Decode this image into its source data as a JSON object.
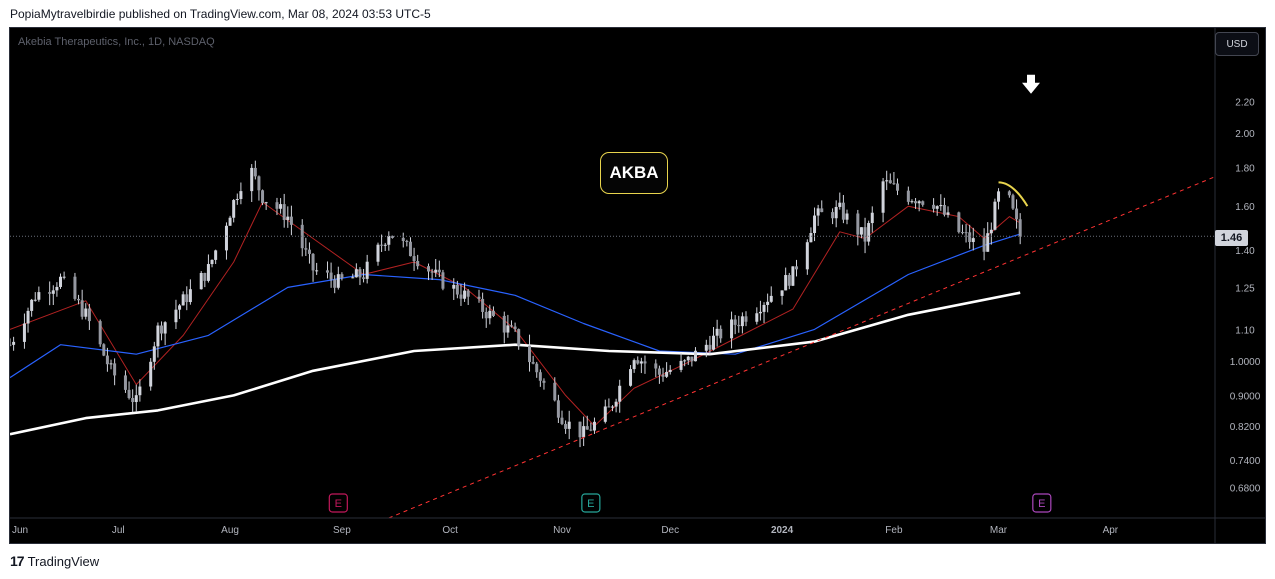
{
  "header": {
    "published_by": "PopiaMytravelbirdie published on TradingView.com, Mar 08, 2024 03:53 UTC-5"
  },
  "chart": {
    "symbol_title": "Akebia Therapeutics, Inc., 1D, NASDAQ",
    "currency": "USD",
    "last_price": "1.46",
    "annotation": "AKBA"
  },
  "footer": {
    "logo": "17",
    "brand": "TradingView"
  },
  "colors": {
    "background": "#000000",
    "price_axis_text": "#b2b5be",
    "candle": "#d1d4dc",
    "ma_fast": "#b22222",
    "ma_mid": "#2962ff",
    "ma_slow": "#ffffff",
    "trendline": "#ff3333",
    "earnings_red": "#c2185b",
    "earnings_teal": "#26a69a",
    "earnings_purple": "#ab47bc",
    "annotation_border": "#e8d44d"
  },
  "chart_data": {
    "type": "candlestick",
    "title": "Akebia Therapeutics, Inc., 1D, NASDAQ",
    "x_axis": {
      "ticks": [
        "Jun",
        "Jul",
        "Aug",
        "Sep",
        "Oct",
        "Nov",
        "Dec",
        "2024",
        "Feb",
        "Mar",
        "Apr"
      ],
      "range": [
        "2023-06-01",
        "2024-04-30"
      ]
    },
    "y_axis": {
      "scale": "log",
      "range": [
        0.62,
        2.75
      ],
      "ticks": [
        "2.20",
        "2.00",
        "1.80",
        "1.60",
        "1.40",
        "1.25",
        "1.10",
        "1.0000",
        "0.9000",
        "0.8200",
        "0.7400",
        "0.6800"
      ]
    },
    "last_price": 1.46,
    "price_path": [
      [
        "2023-06-01",
        1.05
      ],
      [
        "2023-06-08",
        1.22
      ],
      [
        "2023-06-15",
        1.28
      ],
      [
        "2023-06-22",
        1.15
      ],
      [
        "2023-06-29",
        0.97
      ],
      [
        "2023-07-06",
        0.88
      ],
      [
        "2023-07-12",
        1.1
      ],
      [
        "2023-07-19",
        1.2
      ],
      [
        "2023-07-26",
        1.32
      ],
      [
        "2023-08-02",
        1.62
      ],
      [
        "2023-08-06",
        1.82
      ],
      [
        "2023-08-10",
        1.65
      ],
      [
        "2023-08-17",
        1.55
      ],
      [
        "2023-08-24",
        1.32
      ],
      [
        "2023-08-31",
        1.27
      ],
      [
        "2023-09-07",
        1.3
      ],
      [
        "2023-09-14",
        1.48
      ],
      [
        "2023-09-21",
        1.38
      ],
      [
        "2023-09-28",
        1.28
      ],
      [
        "2023-10-05",
        1.22
      ],
      [
        "2023-10-12",
        1.15
      ],
      [
        "2023-10-19",
        1.08
      ],
      [
        "2023-10-26",
        0.95
      ],
      [
        "2023-11-02",
        0.83
      ],
      [
        "2023-11-07",
        0.8
      ],
      [
        "2023-11-14",
        0.86
      ],
      [
        "2023-11-21",
        1.02
      ],
      [
        "2023-11-28",
        0.96
      ],
      [
        "2023-12-05",
        0.99
      ],
      [
        "2023-12-12",
        1.06
      ],
      [
        "2023-12-19",
        1.12
      ],
      [
        "2023-12-27",
        1.2
      ],
      [
        "2024-01-04",
        1.3
      ],
      [
        "2024-01-10",
        1.55
      ],
      [
        "2024-01-17",
        1.58
      ],
      [
        "2024-01-24",
        1.45
      ],
      [
        "2024-01-29",
        1.72
      ],
      [
        "2024-02-05",
        1.65
      ],
      [
        "2024-02-12",
        1.62
      ],
      [
        "2024-02-19",
        1.48
      ],
      [
        "2024-02-26",
        1.4
      ],
      [
        "2024-03-01",
        1.65
      ],
      [
        "2024-03-04",
        1.62
      ],
      [
        "2024-03-07",
        1.46
      ]
    ],
    "series": [
      {
        "name": "",
        "style": "ma_fast",
        "points": [
          [
            "2023-06-01",
            1.1
          ],
          [
            "2023-06-22",
            1.2
          ],
          [
            "2023-07-06",
            0.93
          ],
          [
            "2023-07-19",
            1.08
          ],
          [
            "2023-08-02",
            1.35
          ],
          [
            "2023-08-10",
            1.62
          ],
          [
            "2023-08-24",
            1.45
          ],
          [
            "2023-09-07",
            1.3
          ],
          [
            "2023-09-21",
            1.35
          ],
          [
            "2023-10-05",
            1.25
          ],
          [
            "2023-10-19",
            1.1
          ],
          [
            "2023-11-02",
            0.9
          ],
          [
            "2023-11-10",
            0.82
          ],
          [
            "2023-11-21",
            0.92
          ],
          [
            "2023-12-05",
            0.99
          ],
          [
            "2023-12-19",
            1.07
          ],
          [
            "2024-01-04",
            1.17
          ],
          [
            "2024-01-17",
            1.48
          ],
          [
            "2024-01-24",
            1.45
          ],
          [
            "2024-02-05",
            1.6
          ],
          [
            "2024-02-19",
            1.55
          ],
          [
            "2024-02-26",
            1.45
          ],
          [
            "2024-03-04",
            1.55
          ],
          [
            "2024-03-07",
            1.52
          ]
        ]
      },
      {
        "name": "",
        "style": "ma_mid",
        "points": [
          [
            "2023-06-01",
            0.95
          ],
          [
            "2023-06-15",
            1.05
          ],
          [
            "2023-07-06",
            1.02
          ],
          [
            "2023-07-26",
            1.08
          ],
          [
            "2023-08-17",
            1.25
          ],
          [
            "2023-09-07",
            1.3
          ],
          [
            "2023-09-28",
            1.28
          ],
          [
            "2023-10-19",
            1.22
          ],
          [
            "2023-11-07",
            1.12
          ],
          [
            "2023-11-28",
            1.03
          ],
          [
            "2023-12-19",
            1.02
          ],
          [
            "2024-01-10",
            1.1
          ],
          [
            "2024-02-05",
            1.3
          ],
          [
            "2024-02-26",
            1.42
          ],
          [
            "2024-03-07",
            1.47
          ]
        ]
      },
      {
        "name": "",
        "style": "ma_slow",
        "points": [
          [
            "2023-06-01",
            0.8
          ],
          [
            "2023-06-22",
            0.84
          ],
          [
            "2023-07-12",
            0.86
          ],
          [
            "2023-08-02",
            0.9
          ],
          [
            "2023-08-24",
            0.97
          ],
          [
            "2023-09-21",
            1.03
          ],
          [
            "2023-10-19",
            1.05
          ],
          [
            "2023-11-14",
            1.03
          ],
          [
            "2023-12-12",
            1.02
          ],
          [
            "2024-01-10",
            1.06
          ],
          [
            "2024-02-05",
            1.15
          ],
          [
            "2024-03-07",
            1.23
          ]
        ]
      },
      {
        "name": "",
        "style": "trendline",
        "points": [
          [
            "2023-09-14",
            0.62
          ],
          [
            "2024-04-30",
            1.75
          ]
        ]
      }
    ],
    "annotations": [
      {
        "type": "label",
        "text": "AKBA",
        "date": "2023-11-18",
        "price": 1.74
      },
      {
        "type": "arrow-down",
        "date": "2024-03-10",
        "price": 2.3
      },
      {
        "type": "earnings",
        "letter": "E",
        "date": "2023-08-31",
        "style": "earnings_red"
      },
      {
        "type": "earnings",
        "letter": "E",
        "date": "2023-11-09",
        "style": "earnings_teal"
      },
      {
        "type": "earnings",
        "letter": "E",
        "date": "2024-03-13",
        "style": "earnings_purple"
      }
    ]
  }
}
